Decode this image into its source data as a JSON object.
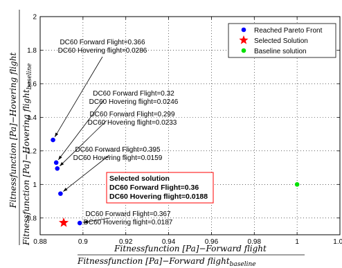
{
  "chart_data": {
    "type": "scatter",
    "xlim": [
      0.88,
      1.02
    ],
    "ylim": [
      0.7,
      2.0
    ],
    "x_ticks": [
      "0.88",
      "0.9",
      "0.92",
      "0.94",
      "0.96",
      "0.98",
      "1",
      "1.02"
    ],
    "y_ticks": [
      "0.8",
      "1",
      "1.2",
      "1.4",
      "1.6",
      "1.8",
      "2"
    ],
    "grid": true,
    "legend_position": "top-right",
    "xlabel": {
      "numerator": "Fitnessfunction [Pa]−Forward flight",
      "denominator": "Fitnessfunction [Pa]−Forward flight",
      "denominator_sub": "baseline"
    },
    "ylabel": {
      "numerator": "Fitnessfunction [Pa]−Hovering flight",
      "denominator": "Fitnessfunction [Pa]−Hovering flight",
      "denominator_sub": "baseline"
    },
    "series": [
      {
        "name": "Reached Pareto Front",
        "color": "#0000ff",
        "marker": "circle",
        "points": [
          {
            "x": 0.886,
            "y": 1.265
          },
          {
            "x": 0.8875,
            "y": 1.13
          },
          {
            "x": 0.888,
            "y": 1.095
          },
          {
            "x": 0.8895,
            "y": 0.945
          },
          {
            "x": 0.8985,
            "y": 0.77
          }
        ]
      },
      {
        "name": "Selected Solution",
        "color": "#ff0000",
        "marker": "star",
        "points": [
          {
            "x": 0.891,
            "y": 0.772
          }
        ]
      },
      {
        "name": "Baseline solution",
        "color": "#00e000",
        "marker": "circle",
        "points": [
          {
            "x": 1.0,
            "y": 1.0
          }
        ]
      }
    ],
    "annotations": [
      {
        "lines": [
          "DC60 Forward Flight=0.366",
          "DC60 Hovering flight=0.0286"
        ],
        "point": 0
      },
      {
        "lines": [
          "DC60 Forward Flight=0.32",
          "DC60 Hovering flight=0.0246"
        ],
        "point": 1
      },
      {
        "lines": [
          "DC60 Forward Flight=0.299",
          "DC60 Hovering flight=0.0233"
        ],
        "point": 2
      },
      {
        "lines": [
          "DC60 Forward Flight=0.395",
          "DC60 Hovering flight=0.0159"
        ],
        "point": 3
      },
      {
        "lines": [
          "DC60 Forward Flight=0.367",
          "DC60 Hovering flight=0.0187"
        ],
        "point": 4
      }
    ],
    "selected_box": {
      "lines": [
        "Selected solution",
        "DC60 Forward Flight=0.36",
        "DC60 Hovering flight=0.0188"
      ],
      "border_color": "#ff0000"
    }
  }
}
